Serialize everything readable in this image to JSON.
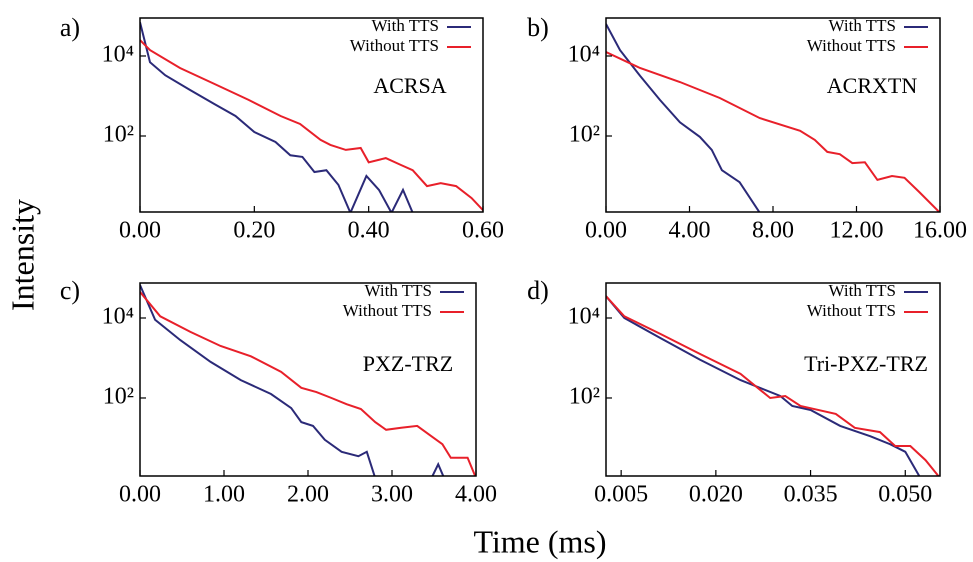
{
  "ylabel": "Intensity",
  "xlabel": "Time (ms)",
  "chart_data": [
    {
      "type": "line",
      "panel_label": "a)",
      "annotation": "ACRSA",
      "log_y": true,
      "legend": "upper right",
      "xlim": [
        0,
        0.6
      ],
      "xticks": [
        {
          "value": 0,
          "label": "0.00"
        },
        {
          "value": 0.2,
          "label": "0.20"
        },
        {
          "value": 0.4,
          "label": "0.40"
        },
        {
          "value": 0.6,
          "label": "0.60"
        }
      ],
      "ylim": [
        1.26,
        89000
      ],
      "yticks": [
        {
          "value": 100,
          "label": "10²"
        },
        {
          "value": 10000,
          "label": "10⁴"
        }
      ],
      "series": [
        {
          "name": "With TTS",
          "color": "#2b2a78",
          "x": [
            0,
            0.0175,
            0.044,
            0.088,
            0.13,
            0.167,
            0.2,
            0.237,
            0.263,
            0.284,
            0.305,
            0.326,
            0.347,
            0.368,
            0.396,
            0.418,
            0.44,
            0.46,
            0.477
          ],
          "values": [
            70000,
            7000,
            3300,
            1400,
            630,
            316,
            126,
            71,
            33,
            30,
            12.6,
            14,
            6,
            1.2,
            10,
            4.5,
            1.2,
            4.5,
            1.2
          ]
        },
        {
          "name": "Without TTS",
          "color": "#e8202a",
          "x": [
            0,
            0.0175,
            0.07,
            0.13,
            0.19,
            0.246,
            0.28,
            0.316,
            0.333,
            0.36,
            0.386,
            0.4,
            0.43,
            0.456,
            0.477,
            0.502,
            0.526,
            0.553,
            0.58,
            0.6
          ],
          "values": [
            25000,
            14000,
            5000,
            2000,
            800,
            316,
            200,
            80,
            60,
            45,
            50,
            22,
            28,
            19,
            14,
            5.6,
            6.6,
            5.6,
            2.8,
            1.4
          ]
        }
      ]
    },
    {
      "type": "line",
      "panel_label": "b)",
      "annotation": "ACRXTN",
      "log_y": true,
      "legend": "upper right",
      "xlim": [
        0,
        16
      ],
      "xticks": [
        {
          "value": 0,
          "label": "0.00"
        },
        {
          "value": 4,
          "label": "4.00"
        },
        {
          "value": 8,
          "label": "8.00"
        },
        {
          "value": 12,
          "label": "12.00"
        },
        {
          "value": 16,
          "label": "16.00"
        }
      ],
      "ylim": [
        1.26,
        89000
      ],
      "yticks": [
        {
          "value": 100,
          "label": "10²"
        },
        {
          "value": 10000,
          "label": "10⁴"
        }
      ],
      "series": [
        {
          "name": "With TTS",
          "color": "#2b2a78",
          "x": [
            0,
            0.67,
            1.63,
            2.58,
            3.54,
            4.5,
            5.07,
            5.55,
            6.4,
            7.37
          ],
          "values": [
            63000,
            14000,
            3200,
            800,
            220,
            95,
            45,
            14,
            7,
            1.2
          ]
        },
        {
          "name": "Without TTS",
          "color": "#e8202a",
          "x": [
            0,
            1.63,
            3.54,
            5.45,
            7.37,
            9.3,
            10,
            10.6,
            11.2,
            11.8,
            12.4,
            13,
            13.7,
            14.3,
            15,
            16
          ],
          "values": [
            12600,
            5000,
            2240,
            890,
            280,
            135,
            80,
            40,
            35,
            21,
            22,
            8,
            10,
            9,
            4,
            1.2
          ]
        }
      ]
    },
    {
      "type": "line",
      "panel_label": "c)",
      "annotation": "PXZ-TRZ",
      "log_y": true,
      "legend": "upper right",
      "xlim": [
        0,
        4.0
      ],
      "xticks": [
        {
          "value": 0,
          "label": "0.00"
        },
        {
          "value": 1,
          "label": "1.00"
        },
        {
          "value": 2,
          "label": "2.00"
        },
        {
          "value": 3,
          "label": "3.00"
        },
        {
          "value": 4,
          "label": "4.00"
        }
      ],
      "ylim": [
        1.12,
        75000
      ],
      "yticks": [
        {
          "value": 100,
          "label": "10²"
        },
        {
          "value": 10000,
          "label": "10⁴"
        }
      ],
      "series": [
        {
          "name": "With TTS",
          "color": "#2b2a78",
          "x": [
            0,
            0.18,
            0.48,
            0.84,
            1.2,
            1.56,
            1.8,
            1.92,
            2.06,
            2.2,
            2.4,
            2.6,
            2.7,
            2.8,
            3.47,
            3.55,
            3.62
          ],
          "values": [
            67000,
            9000,
            2800,
            800,
            280,
            126,
            56,
            25,
            20,
            9,
            4.5,
            3.5,
            4.5,
            1.0,
            1.0,
            2.2,
            1.0
          ]
        },
        {
          "name": "Without TTS",
          "color": "#e8202a",
          "x": [
            0,
            0.24,
            0.6,
            0.96,
            1.32,
            1.68,
            1.92,
            2.1,
            2.28,
            2.46,
            2.63,
            2.8,
            2.93,
            3.11,
            3.3,
            3.47,
            3.6,
            3.7,
            3.9,
            4.0
          ],
          "values": [
            45000,
            11000,
            4500,
            2000,
            1100,
            450,
            180,
            140,
            100,
            70,
            53,
            25,
            16,
            18,
            20,
            11,
            7,
            3.2,
            3.2,
            1.0
          ]
        }
      ]
    },
    {
      "type": "line",
      "panel_label": "d)",
      "annotation": "Tri-PXZ-TRZ",
      "log_y": true,
      "legend": "upper right",
      "xlim": [
        0.0026,
        0.0555
      ],
      "xticks": [
        0.005,
        {
          "value": 0.02,
          "label": "0.020"
        },
        0.035,
        {
          "value": 0.05,
          "label": "0.050"
        }
      ],
      "ylim": [
        1.12,
        75000
      ],
      "yticks": [
        {
          "value": 100,
          "label": "10²"
        },
        {
          "value": 10000,
          "label": "10⁴"
        }
      ],
      "series": [
        {
          "name": "With TTS",
          "color": "#2b2a78",
          "x": [
            0.0026,
            0.0055,
            0.0112,
            0.0175,
            0.0239,
            0.0302,
            0.0321,
            0.035,
            0.0397,
            0.0445,
            0.0476,
            0.05,
            0.0524
          ],
          "values": [
            35000,
            10000,
            3160,
            900,
            280,
            112,
            63,
            50,
            20,
            11,
            7,
            4.5,
            1.0
          ]
        },
        {
          "name": "Without TTS",
          "color": "#e8202a",
          "x": [
            0.0026,
            0.0055,
            0.0112,
            0.0175,
            0.0239,
            0.0286,
            0.031,
            0.0334,
            0.039,
            0.042,
            0.046,
            0.0484,
            0.0508,
            0.0532,
            0.0555
          ],
          "values": [
            35000,
            11000,
            4000,
            1260,
            400,
            100,
            112,
            63,
            40,
            18,
            14,
            6.3,
            6.3,
            2.8,
            1.0
          ]
        }
      ]
    }
  ]
}
